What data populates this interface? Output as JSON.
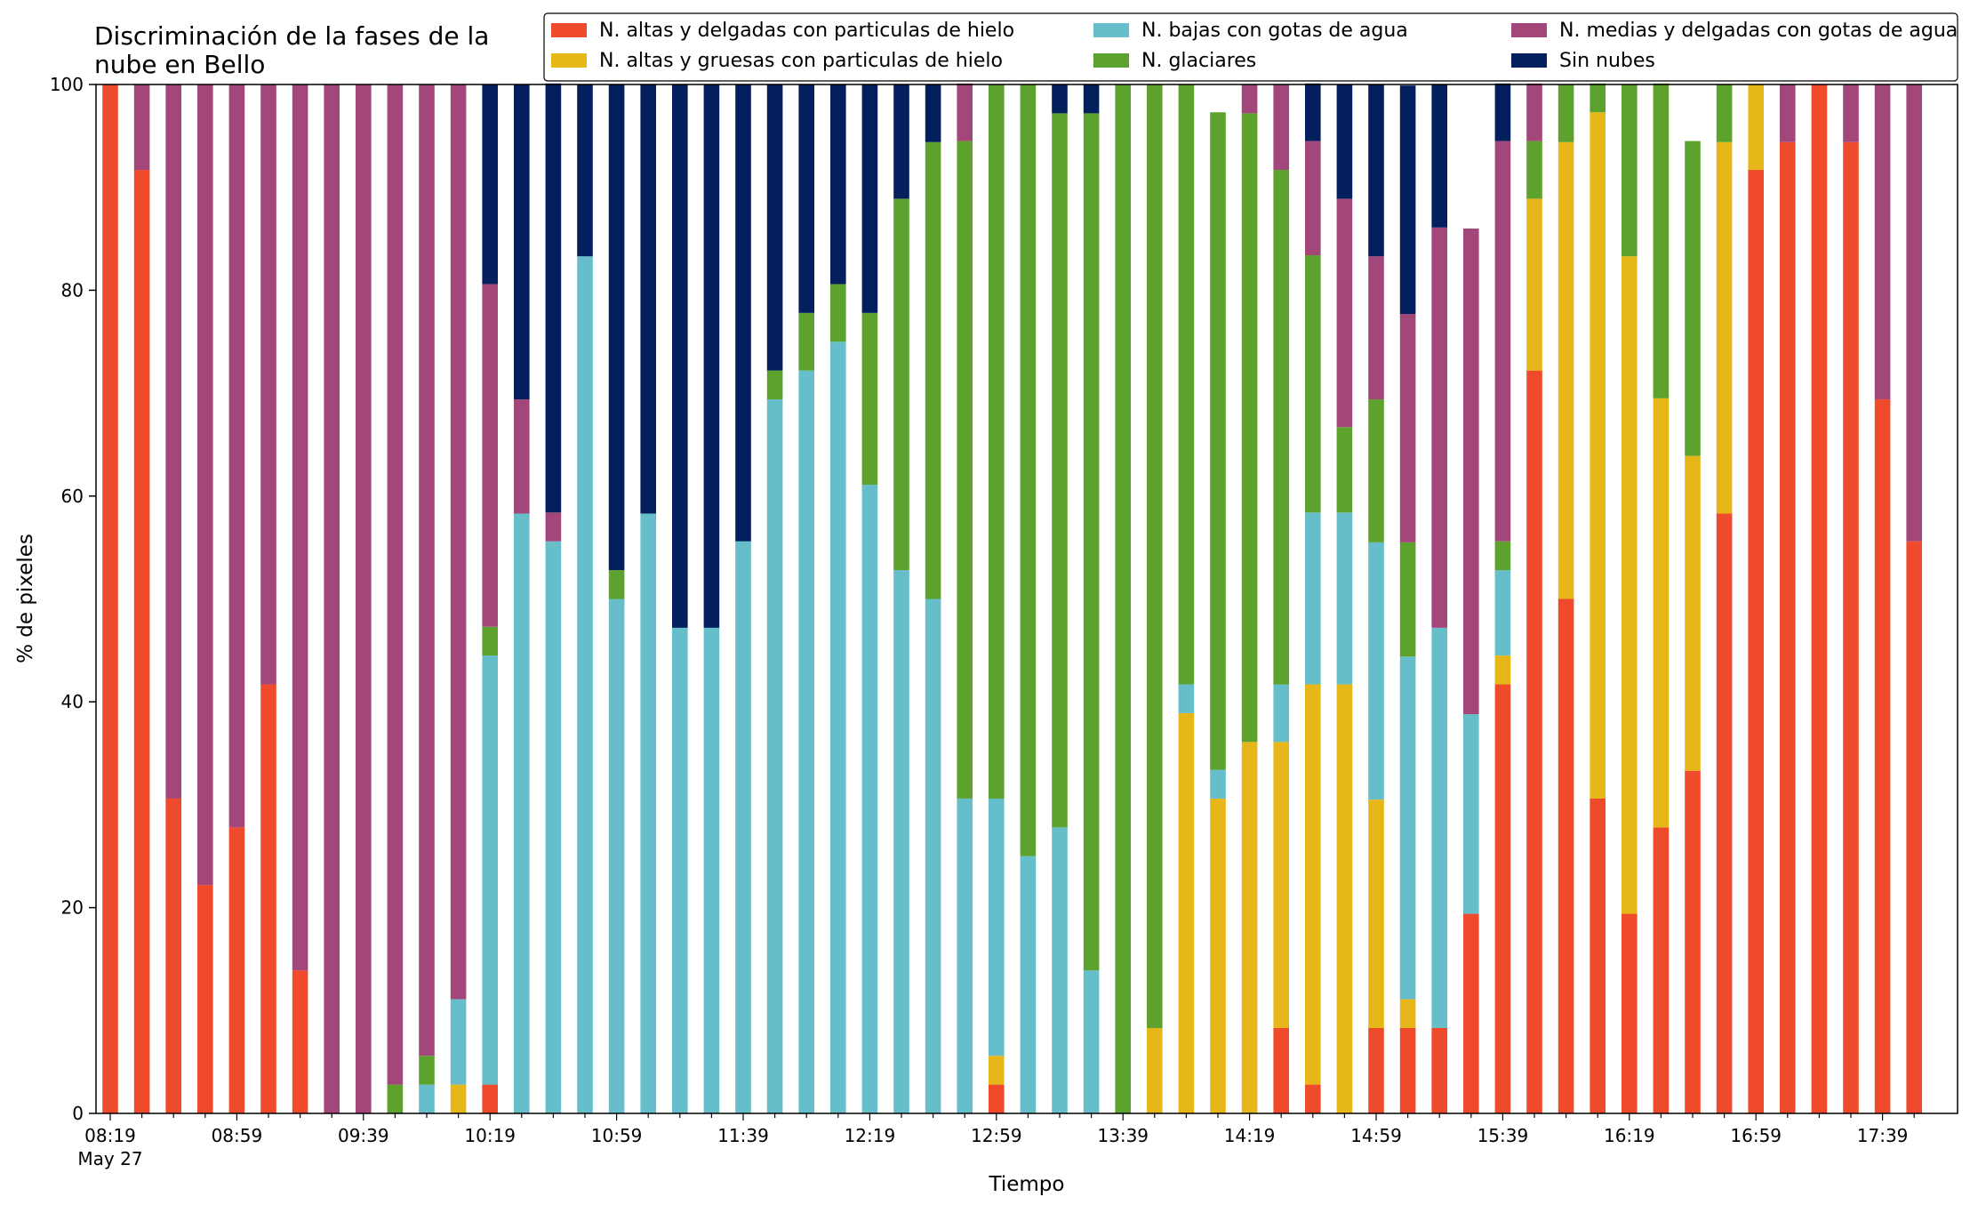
{
  "chart_data": {
    "type": "bar",
    "stacked": true,
    "title": "Discriminación de la fases de la\nnube en Bello",
    "xlabel": "Tiempo",
    "ylabel": "% de pixeles",
    "ylim": [
      0,
      100
    ],
    "yticks": [
      0,
      20,
      40,
      60,
      80,
      100
    ],
    "grid": false,
    "legend_position": "top-right",
    "xtick_labels": [
      "08:19",
      "08:59",
      "09:39",
      "10:19",
      "10:59",
      "11:39",
      "12:19",
      "12:59",
      "13:39",
      "14:19",
      "14:59",
      "15:39",
      "16:19",
      "16:59",
      "17:39"
    ],
    "xtick_sublabel": "May 27",
    "times": [
      "08:19",
      "08:29",
      "08:39",
      "08:49",
      "08:59",
      "09:09",
      "09:19",
      "09:29",
      "09:39",
      "09:49",
      "09:59",
      "10:09",
      "10:19",
      "10:29",
      "10:39",
      "10:49",
      "10:59",
      "11:09",
      "11:19",
      "11:29",
      "11:39",
      "11:49",
      "11:59",
      "12:09",
      "12:19",
      "12:29",
      "12:39",
      "12:49",
      "12:59",
      "13:09",
      "13:19",
      "13:29",
      "13:39",
      "13:49",
      "13:59",
      "14:09",
      "14:19",
      "14:29",
      "14:39",
      "14:49",
      "14:59",
      "15:09",
      "15:19",
      "15:29",
      "15:39",
      "15:49",
      "15:59",
      "16:09",
      "16:19",
      "16:29",
      "16:39",
      "16:49",
      "16:59",
      "17:09",
      "17:19",
      "17:29",
      "17:39",
      "17:49"
    ],
    "series": [
      {
        "name": "N. altas y delgadas con particulas de hielo",
        "color": "#EE4A2B",
        "values": [
          100,
          91.7,
          30.6,
          22.2,
          27.8,
          41.7,
          13.9,
          0,
          0,
          0,
          0,
          0,
          2.8,
          0,
          0,
          0,
          0,
          0,
          0,
          0,
          0,
          0,
          0,
          0,
          0,
          0,
          0,
          0,
          2.8,
          0,
          0,
          0,
          0,
          0,
          0,
          0,
          0,
          8.3,
          2.8,
          0,
          8.3,
          8.3,
          8.3,
          19.4,
          41.7,
          72.2,
          50,
          30.6,
          19.4,
          27.8,
          33.3,
          58.3,
          91.7,
          94.4,
          100,
          94.4,
          69.4,
          55.6
        ]
      },
      {
        "name": "N. altas y gruesas con particulas de hielo",
        "color": "#E7B619",
        "values": [
          0,
          0,
          0,
          0,
          0,
          0,
          0,
          0,
          0,
          0,
          0,
          2.8,
          0,
          0,
          0,
          0,
          0,
          0,
          0,
          0,
          0,
          0,
          0,
          0,
          0,
          0,
          0,
          0,
          2.8,
          0,
          0,
          0,
          0,
          8.3,
          38.9,
          30.6,
          36.1,
          27.8,
          38.9,
          41.7,
          22.2,
          2.8,
          0,
          0,
          2.8,
          16.7,
          44.4,
          66.7,
          63.9,
          41.7,
          30.6,
          36.1,
          8.3,
          0,
          0,
          0,
          0,
          0
        ]
      },
      {
        "name": "N. bajas con gotas de agua",
        "color": "#66BECA",
        "values": [
          0,
          0,
          0,
          0,
          0,
          0,
          0,
          0,
          0,
          0,
          2.8,
          8.3,
          41.7,
          58.3,
          55.6,
          83.3,
          50,
          58.3,
          47.2,
          47.2,
          55.6,
          69.4,
          72.2,
          75,
          61.1,
          52.8,
          50,
          30.6,
          25,
          25,
          27.8,
          13.9,
          0,
          0,
          2.8,
          2.8,
          0,
          5.6,
          16.7,
          16.7,
          25,
          33.3,
          38.9,
          19.4,
          8.3,
          0,
          0,
          0,
          0,
          0,
          0,
          0,
          0,
          0,
          0,
          0,
          0,
          0
        ]
      },
      {
        "name": "N. glaciares",
        "color": "#5CA22C",
        "values": [
          0,
          0,
          0,
          0,
          0,
          0,
          0,
          0,
          0,
          2.8,
          2.8,
          0,
          2.8,
          0,
          0,
          0,
          2.8,
          0,
          0,
          0,
          0,
          2.8,
          5.6,
          5.6,
          16.7,
          36.1,
          44.4,
          63.9,
          69.4,
          75,
          69.4,
          83.3,
          100,
          91.7,
          58.3,
          63.9,
          61.1,
          50,
          25,
          8.3,
          13.9,
          11.1,
          0,
          0,
          2.8,
          5.6,
          5.6,
          2.8,
          16.7,
          30.6,
          30.6,
          5.6,
          0,
          0,
          0,
          0,
          0,
          0
        ]
      },
      {
        "name": "N. medias y delgadas con gotas de agua",
        "color": "#A3477B",
        "values": [
          0,
          8.3,
          69.4,
          77.8,
          72.2,
          58.3,
          86.1,
          100,
          100,
          97.2,
          94.4,
          88.9,
          33.3,
          11.1,
          2.8,
          0,
          0,
          0,
          0,
          0,
          0,
          0,
          0,
          0,
          0,
          0,
          0,
          5.6,
          0,
          0,
          0,
          0,
          0,
          0,
          0,
          0,
          2.8,
          8.3,
          11.1,
          22.2,
          13.9,
          22.2,
          38.9,
          47.2,
          38.9,
          5.6,
          0,
          0,
          0,
          0,
          0,
          0,
          0,
          5.6,
          0,
          5.6,
          30.6,
          44.4
        ]
      },
      {
        "name": "Sin nubes",
        "color": "#031F5E",
        "values": [
          0,
          0,
          0,
          0,
          0,
          0,
          0,
          0,
          0,
          0,
          0,
          0,
          19.4,
          30.6,
          41.7,
          16.7,
          47.2,
          41.7,
          52.8,
          52.8,
          44.4,
          27.8,
          22.2,
          19.4,
          22.2,
          11.1,
          5.6,
          0,
          0,
          0,
          2.8,
          2.8,
          0,
          0,
          0,
          0,
          0,
          0,
          5.6,
          11.1,
          16.7,
          22.2,
          13.9,
          0,
          5.6,
          0,
          0,
          0,
          0,
          0,
          0,
          0,
          0,
          0,
          0,
          0,
          0,
          0
        ]
      }
    ]
  }
}
